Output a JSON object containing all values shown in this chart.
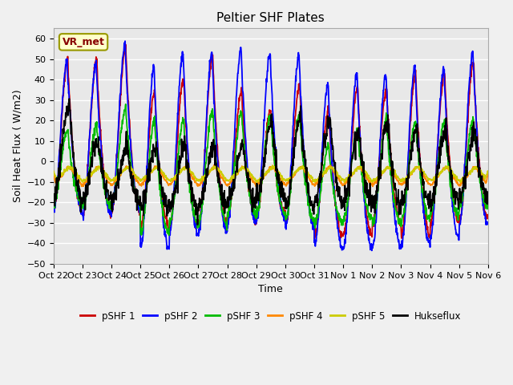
{
  "title": "Peltier SHF Plates",
  "xlabel": "Time",
  "ylabel": "Soil Heat Flux ( W/m2)",
  "ylim": [
    -50,
    65
  ],
  "xlim_start": 0,
  "xlim_end": 15,
  "xtick_labels": [
    "Oct 22",
    "Oct 23",
    "Oct 24",
    "Oct 25",
    "Oct 26",
    "Oct 27",
    "Oct 28",
    "Oct 29",
    "Oct 30",
    "Oct 31",
    "Nov 1",
    "Nov 2",
    "Nov 3",
    "Nov 4",
    "Nov 5",
    "Nov 6"
  ],
  "yticks": [
    -50,
    -40,
    -30,
    -20,
    -10,
    0,
    10,
    20,
    30,
    40,
    50,
    60
  ],
  "series_colors": {
    "pSHF 1": "#cc0000",
    "pSHF 2": "#0000ff",
    "pSHF 3": "#00bb00",
    "pSHF 4": "#ff8800",
    "pSHF 5": "#cccc00",
    "Hukseflux": "#000000"
  },
  "annotation_text": "VR_met",
  "bg_color": "#f0f0f0",
  "plot_bg_color": "#e8e8e8",
  "grid_color": "#ffffff",
  "title_fontsize": 11,
  "axis_label_fontsize": 9,
  "tick_fontsize": 8
}
